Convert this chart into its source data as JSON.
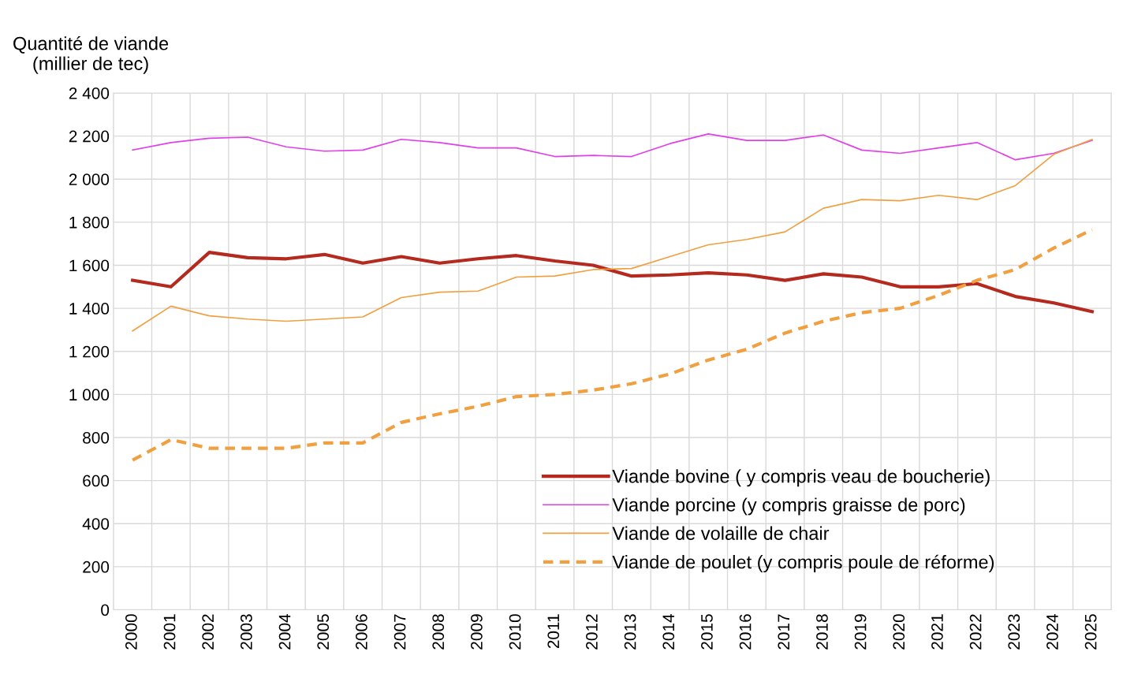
{
  "chart_data": {
    "type": "line",
    "ylabel": "Quantité de viande\n(millier de tec)",
    "categories": [
      "2000",
      "2001",
      "2002",
      "2003",
      "2004",
      "2005",
      "2006",
      "2007",
      "2008",
      "2009",
      "2010",
      "2011",
      "2012",
      "2013",
      "2014",
      "2015",
      "2016",
      "2017",
      "2018",
      "2019",
      "2020",
      "2021",
      "2022",
      "2023",
      "2024",
      "2025"
    ],
    "ylim": [
      0,
      2400
    ],
    "yticks": [
      0,
      200,
      400,
      600,
      800,
      {
        "value": 1000,
        "label": "1 000"
      },
      {
        "value": 1200,
        "label": "1 200"
      },
      {
        "value": 1400,
        "label": "1 400"
      },
      {
        "value": 1600,
        "label": "1 600"
      },
      {
        "value": 1800,
        "label": "1 800"
      },
      {
        "value": 2000,
        "label": "2 000"
      },
      {
        "value": 2200,
        "label": "2 200"
      },
      {
        "value": 2400,
        "label": "2 400"
      }
    ],
    "grid": true,
    "legend": "bottom right",
    "marker": "none",
    "series": [
      {
        "name": "Viande bovine ( y compris veau de boucherie)",
        "color": "#b52a1e",
        "line_style": "solid",
        "values": [
          1530,
          1500,
          1660,
          1635,
          1630,
          1650,
          1610,
          1640,
          1610,
          1630,
          1645,
          1620,
          1600,
          1550,
          1555,
          1565,
          1555,
          1530,
          1560,
          1545,
          1500,
          1500,
          1515,
          1455,
          1425,
          1385
        ]
      },
      {
        "name": "Viande porcine (y compris graisse de porc)",
        "color": "#e040e8",
        "line_style": "solid",
        "values": [
          2135,
          2170,
          2190,
          2195,
          2150,
          2130,
          2135,
          2185,
          2170,
          2145,
          2145,
          2105,
          2110,
          2105,
          2165,
          2210,
          2180,
          2180,
          2205,
          2135,
          2120,
          2145,
          2170,
          2090,
          2120,
          2180
        ]
      },
      {
        "name": "Viande de volaille de chair",
        "color": "#f0a040",
        "line_style": "solid",
        "values": [
          1295,
          1410,
          1365,
          1350,
          1340,
          1350,
          1360,
          1450,
          1475,
          1480,
          1545,
          1550,
          1580,
          1585,
          1640,
          1695,
          1720,
          1755,
          1865,
          1905,
          1900,
          1925,
          1905,
          1970,
          2115,
          2185
        ]
      },
      {
        "name": "Viande de poulet (y compris poule de réforme)",
        "color": "#f0a040",
        "line_style": "dashed",
        "values": [
          695,
          790,
          750,
          750,
          750,
          775,
          775,
          870,
          910,
          945,
          990,
          1000,
          1020,
          1050,
          1095,
          1160,
          1210,
          1285,
          1340,
          1380,
          1400,
          1460,
          1530,
          1580,
          1680,
          1765
        ]
      }
    ]
  }
}
